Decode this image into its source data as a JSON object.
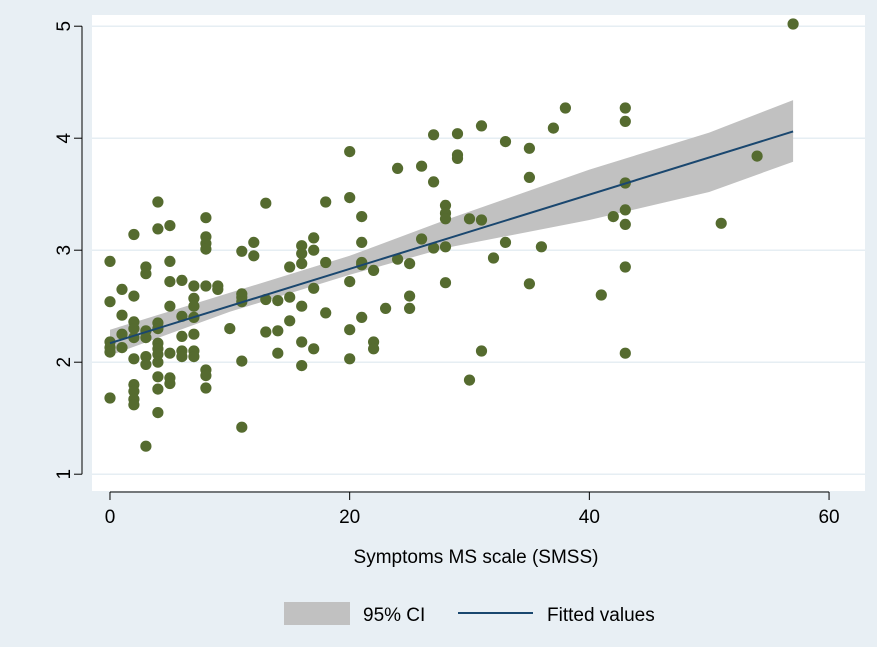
{
  "chart_data": {
    "type": "scatter",
    "title": "",
    "xlabel": "Symptoms MS scale (SMSS)",
    "ylabel": "",
    "xlim": [
      -1.5,
      63
    ],
    "ylim": [
      0.85,
      5.1
    ],
    "xticks": [
      0,
      20,
      40,
      60
    ],
    "yticks": [
      1,
      2,
      3,
      4,
      5
    ],
    "xtick_labels": [
      "0",
      "20",
      "40",
      "60"
    ],
    "ytick_labels": [
      "1",
      "2",
      "3",
      "4",
      "5"
    ],
    "grid": "horizontal",
    "legend_position": "bottom",
    "colors": {
      "outer_background": "#e8eff4",
      "plot_background": "#ffffff",
      "gridline": "#e6eef3",
      "points": "#556b2f",
      "ci_band": "#c1c1c1",
      "fit_line": "#1a476f",
      "axis": "#000000"
    },
    "fit": {
      "x": [
        0,
        57
      ],
      "y": [
        2.17,
        4.06
      ]
    },
    "ci": {
      "x": [
        0,
        10,
        20,
        28,
        40,
        50,
        57
      ],
      "lower": [
        2.06,
        2.45,
        2.78,
        3.02,
        3.27,
        3.52,
        3.79
      ],
      "upper": [
        2.29,
        2.62,
        2.95,
        3.27,
        3.72,
        4.05,
        4.34
      ]
    },
    "series": [
      {
        "points": [
          [
            0,
            2.9
          ],
          [
            0,
            2.54
          ],
          [
            0,
            2.18
          ],
          [
            0,
            2.13
          ],
          [
            0,
            2.09
          ],
          [
            0,
            1.68
          ],
          [
            1,
            2.65
          ],
          [
            1,
            2.42
          ],
          [
            1,
            2.25
          ],
          [
            1,
            2.13
          ],
          [
            2,
            3.14
          ],
          [
            2,
            2.59
          ],
          [
            2,
            2.36
          ],
          [
            2,
            2.3
          ],
          [
            2,
            2.22
          ],
          [
            2,
            2.03
          ],
          [
            2,
            1.8
          ],
          [
            2,
            1.74
          ],
          [
            2,
            1.67
          ],
          [
            2,
            1.62
          ],
          [
            3,
            2.85
          ],
          [
            3,
            2.79
          ],
          [
            3,
            2.28
          ],
          [
            3,
            2.22
          ],
          [
            3,
            2.05
          ],
          [
            3,
            1.98
          ],
          [
            3,
            1.25
          ],
          [
            4,
            3.43
          ],
          [
            4,
            3.19
          ],
          [
            4,
            2.35
          ],
          [
            4,
            2.3
          ],
          [
            4,
            2.17
          ],
          [
            4,
            2.12
          ],
          [
            4,
            2.07
          ],
          [
            4,
            2.0
          ],
          [
            4,
            1.87
          ],
          [
            4,
            1.76
          ],
          [
            4,
            1.55
          ],
          [
            5,
            3.22
          ],
          [
            5,
            2.9
          ],
          [
            5,
            2.72
          ],
          [
            5,
            2.5
          ],
          [
            5,
            2.08
          ],
          [
            5,
            1.86
          ],
          [
            5,
            1.81
          ],
          [
            6,
            2.73
          ],
          [
            6,
            2.41
          ],
          [
            6,
            2.23
          ],
          [
            6,
            2.1
          ],
          [
            6,
            2.05
          ],
          [
            7,
            2.68
          ],
          [
            7,
            2.57
          ],
          [
            7,
            2.5
          ],
          [
            7,
            2.4
          ],
          [
            7,
            2.25
          ],
          [
            7,
            2.1
          ],
          [
            7,
            2.05
          ],
          [
            8,
            3.29
          ],
          [
            8,
            3.12
          ],
          [
            8,
            3.06
          ],
          [
            8,
            3.01
          ],
          [
            8,
            2.68
          ],
          [
            8,
            1.93
          ],
          [
            8,
            1.88
          ],
          [
            8,
            1.77
          ],
          [
            9,
            2.68
          ],
          [
            9,
            2.65
          ],
          [
            10,
            2.3
          ],
          [
            11,
            2.99
          ],
          [
            11,
            2.61
          ],
          [
            11,
            2.58
          ],
          [
            11,
            2.54
          ],
          [
            11,
            2.01
          ],
          [
            11,
            1.42
          ],
          [
            12,
            3.07
          ],
          [
            12,
            2.95
          ],
          [
            13,
            3.42
          ],
          [
            13,
            2.56
          ],
          [
            13,
            2.27
          ],
          [
            14,
            2.55
          ],
          [
            14,
            2.28
          ],
          [
            14,
            2.08
          ],
          [
            15,
            2.85
          ],
          [
            15,
            2.58
          ],
          [
            15,
            2.37
          ],
          [
            16,
            3.04
          ],
          [
            16,
            2.97
          ],
          [
            16,
            2.88
          ],
          [
            16,
            2.5
          ],
          [
            16,
            2.18
          ],
          [
            16,
            1.97
          ],
          [
            17,
            3.11
          ],
          [
            17,
            3.0
          ],
          [
            17,
            2.66
          ],
          [
            17,
            2.12
          ],
          [
            18,
            3.43
          ],
          [
            18,
            2.89
          ],
          [
            18,
            2.44
          ],
          [
            20,
            3.88
          ],
          [
            20,
            3.47
          ],
          [
            20,
            2.72
          ],
          [
            20,
            2.29
          ],
          [
            20,
            2.03
          ],
          [
            21,
            3.3
          ],
          [
            21,
            3.07
          ],
          [
            21,
            2.89
          ],
          [
            21,
            2.87
          ],
          [
            21,
            2.4
          ],
          [
            22,
            2.82
          ],
          [
            22,
            2.18
          ],
          [
            22,
            2.12
          ],
          [
            23,
            2.48
          ],
          [
            24,
            3.73
          ],
          [
            24,
            2.92
          ],
          [
            25,
            2.88
          ],
          [
            25,
            2.59
          ],
          [
            25,
            2.48
          ],
          [
            26,
            3.75
          ],
          [
            26,
            3.1
          ],
          [
            27,
            4.03
          ],
          [
            27,
            3.61
          ],
          [
            27,
            3.02
          ],
          [
            28,
            3.4
          ],
          [
            28,
            3.33
          ],
          [
            28,
            3.28
          ],
          [
            28,
            3.03
          ],
          [
            28,
            2.71
          ],
          [
            29,
            4.04
          ],
          [
            29,
            3.85
          ],
          [
            29,
            3.82
          ],
          [
            30,
            3.28
          ],
          [
            30,
            1.84
          ],
          [
            31,
            4.11
          ],
          [
            31,
            3.27
          ],
          [
            31,
            2.1
          ],
          [
            32,
            2.93
          ],
          [
            33,
            3.97
          ],
          [
            33,
            3.07
          ],
          [
            35,
            3.91
          ],
          [
            35,
            3.65
          ],
          [
            35,
            2.7
          ],
          [
            36,
            3.03
          ],
          [
            37,
            4.09
          ],
          [
            38,
            4.27
          ],
          [
            41,
            2.6
          ],
          [
            42,
            3.3
          ],
          [
            43,
            4.27
          ],
          [
            43,
            4.15
          ],
          [
            43,
            3.6
          ],
          [
            43,
            3.36
          ],
          [
            43,
            3.23
          ],
          [
            43,
            2.85
          ],
          [
            43,
            2.08
          ],
          [
            51,
            3.24
          ],
          [
            54,
            3.84
          ],
          [
            57,
            5.02
          ]
        ]
      }
    ],
    "legend": [
      "95% CI",
      "Fitted values"
    ]
  }
}
